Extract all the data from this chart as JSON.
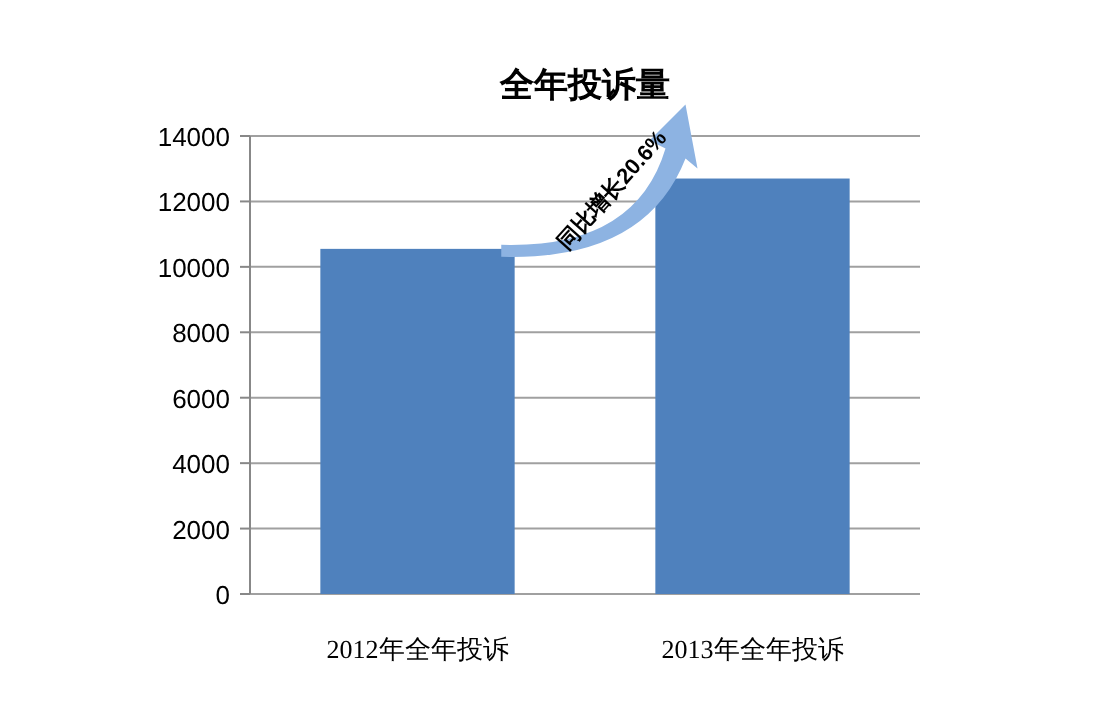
{
  "chart_data": {
    "type": "bar",
    "title": "全年投诉量",
    "categories": [
      "2012年全年投诉",
      "2013年全年投诉"
    ],
    "values": [
      10550,
      12700
    ],
    "color": "#4f81bd",
    "ylim": [
      0,
      14000
    ],
    "yticks": [
      0,
      2000,
      4000,
      6000,
      8000,
      10000,
      12000,
      14000
    ],
    "grid": "y",
    "annotations": [
      "同比增长20.6%"
    ]
  }
}
